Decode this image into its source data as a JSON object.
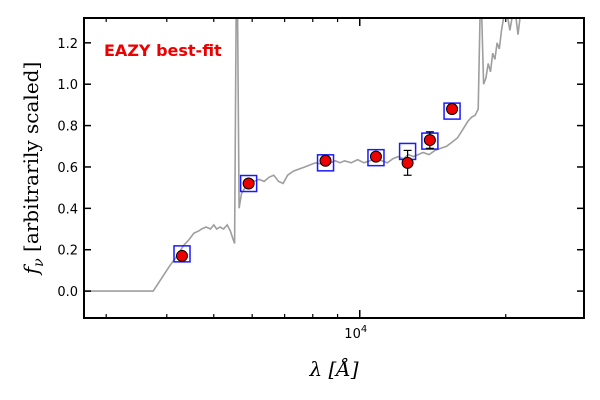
{
  "chart_data": {
    "type": "scatter",
    "xlabel": "λ [Å]",
    "ylabel": "f_ν [arbitrarily scaled]",
    "xscale": "log",
    "xlim": [
      2700,
      29000
    ],
    "ylim": [
      -0.13,
      1.32
    ],
    "grid": false,
    "annotation": {
      "text": "EAZY best-fit",
      "color": "#ee0000"
    },
    "x_ticks": [
      {
        "value": 10000,
        "label": "10^4"
      }
    ],
    "y_ticks": [
      {
        "value": 0.0,
        "label": "0.0"
      },
      {
        "value": 0.2,
        "label": "0.2"
      },
      {
        "value": 0.4,
        "label": "0.4"
      },
      {
        "value": 0.6,
        "label": "0.6"
      },
      {
        "value": 0.8,
        "label": "0.8"
      },
      {
        "value": 1.0,
        "label": "1.0"
      },
      {
        "value": 1.2,
        "label": "1.2"
      }
    ],
    "template_sed": {
      "color": "#9e9e9e",
      "points": [
        [
          2700,
          0.0
        ],
        [
          3750,
          0.0
        ],
        [
          4050,
          0.12
        ],
        [
          4200,
          0.17
        ],
        [
          4330,
          0.22
        ],
        [
          4450,
          0.25
        ],
        [
          4550,
          0.28
        ],
        [
          4650,
          0.29
        ],
        [
          4720,
          0.3
        ],
        [
          4820,
          0.31
        ],
        [
          4920,
          0.3
        ],
        [
          5000,
          0.32
        ],
        [
          5070,
          0.3
        ],
        [
          5150,
          0.31
        ],
        [
          5240,
          0.3
        ],
        [
          5330,
          0.32
        ],
        [
          5410,
          0.29
        ],
        [
          5480,
          0.25
        ],
        [
          5520,
          0.23
        ],
        [
          5560,
          1.32
        ],
        [
          5600,
          1.32
        ],
        [
          5640,
          0.4
        ],
        [
          5700,
          0.47
        ],
        [
          5800,
          0.5
        ],
        [
          5900,
          0.52
        ],
        [
          6050,
          0.53
        ],
        [
          6200,
          0.54
        ],
        [
          6350,
          0.53
        ],
        [
          6500,
          0.55
        ],
        [
          6650,
          0.56
        ],
        [
          6800,
          0.53
        ],
        [
          6950,
          0.52
        ],
        [
          7100,
          0.56
        ],
        [
          7300,
          0.58
        ],
        [
          7500,
          0.59
        ],
        [
          7700,
          0.6
        ],
        [
          7900,
          0.61
        ],
        [
          8100,
          0.62
        ],
        [
          8300,
          0.615
        ],
        [
          8500,
          0.625
        ],
        [
          8700,
          0.62
        ],
        [
          8900,
          0.63
        ],
        [
          9100,
          0.62
        ],
        [
          9300,
          0.63
        ],
        [
          9600,
          0.62
        ],
        [
          9900,
          0.635
        ],
        [
          10200,
          0.62
        ],
        [
          10500,
          0.63
        ],
        [
          10800,
          0.64
        ],
        [
          11100,
          0.63
        ],
        [
          11400,
          0.62
        ],
        [
          11700,
          0.64
        ],
        [
          12000,
          0.65
        ],
        [
          12300,
          0.64
        ],
        [
          12600,
          0.66
        ],
        [
          12900,
          0.65
        ],
        [
          13200,
          0.66
        ],
        [
          13500,
          0.67
        ],
        [
          13900,
          0.66
        ],
        [
          14300,
          0.68
        ],
        [
          14700,
          0.69
        ],
        [
          15100,
          0.7
        ],
        [
          15500,
          0.72
        ],
        [
          15900,
          0.74
        ],
        [
          16300,
          0.78
        ],
        [
          16700,
          0.82
        ],
        [
          17000,
          0.84
        ],
        [
          17300,
          0.85
        ],
        [
          17550,
          0.88
        ],
        [
          17700,
          1.32
        ],
        [
          17850,
          1.32
        ],
        [
          18000,
          1.0
        ],
        [
          18200,
          1.03
        ],
        [
          18400,
          1.1
        ],
        [
          18600,
          1.06
        ],
        [
          18800,
          1.15
        ],
        [
          19000,
          1.12
        ],
        [
          19200,
          1.2
        ],
        [
          19400,
          1.17
        ],
        [
          19600,
          1.26
        ],
        [
          19800,
          1.32
        ],
        [
          20200,
          1.32
        ],
        [
          20400,
          1.26
        ],
        [
          20600,
          1.32
        ],
        [
          21000,
          1.32
        ],
        [
          21200,
          1.24
        ],
        [
          21400,
          1.32
        ]
      ]
    },
    "model_fluxes": {
      "marker": "open square",
      "color": "#1a1aff",
      "points": [
        [
          4300,
          0.18
        ],
        [
          5900,
          0.52
        ],
        [
          8500,
          0.62
        ],
        [
          10800,
          0.645
        ],
        [
          12550,
          0.675
        ],
        [
          13950,
          0.725
        ],
        [
          15500,
          0.87
        ]
      ]
    },
    "observed_fluxes": {
      "marker": "filled circle",
      "face_color": "#ee0000",
      "edge_color": "#000000",
      "points": [
        {
          "x": 4300,
          "y": 0.17,
          "yerr": 0.01
        },
        {
          "x": 5900,
          "y": 0.52,
          "yerr": 0.01
        },
        {
          "x": 8500,
          "y": 0.63,
          "yerr": 0.01
        },
        {
          "x": 10800,
          "y": 0.65,
          "yerr": 0.01
        },
        {
          "x": 12550,
          "y": 0.62,
          "yerr": 0.06
        },
        {
          "x": 13950,
          "y": 0.73,
          "yerr": 0.04
        },
        {
          "x": 15500,
          "y": 0.88,
          "yerr": 0.02
        }
      ]
    }
  }
}
